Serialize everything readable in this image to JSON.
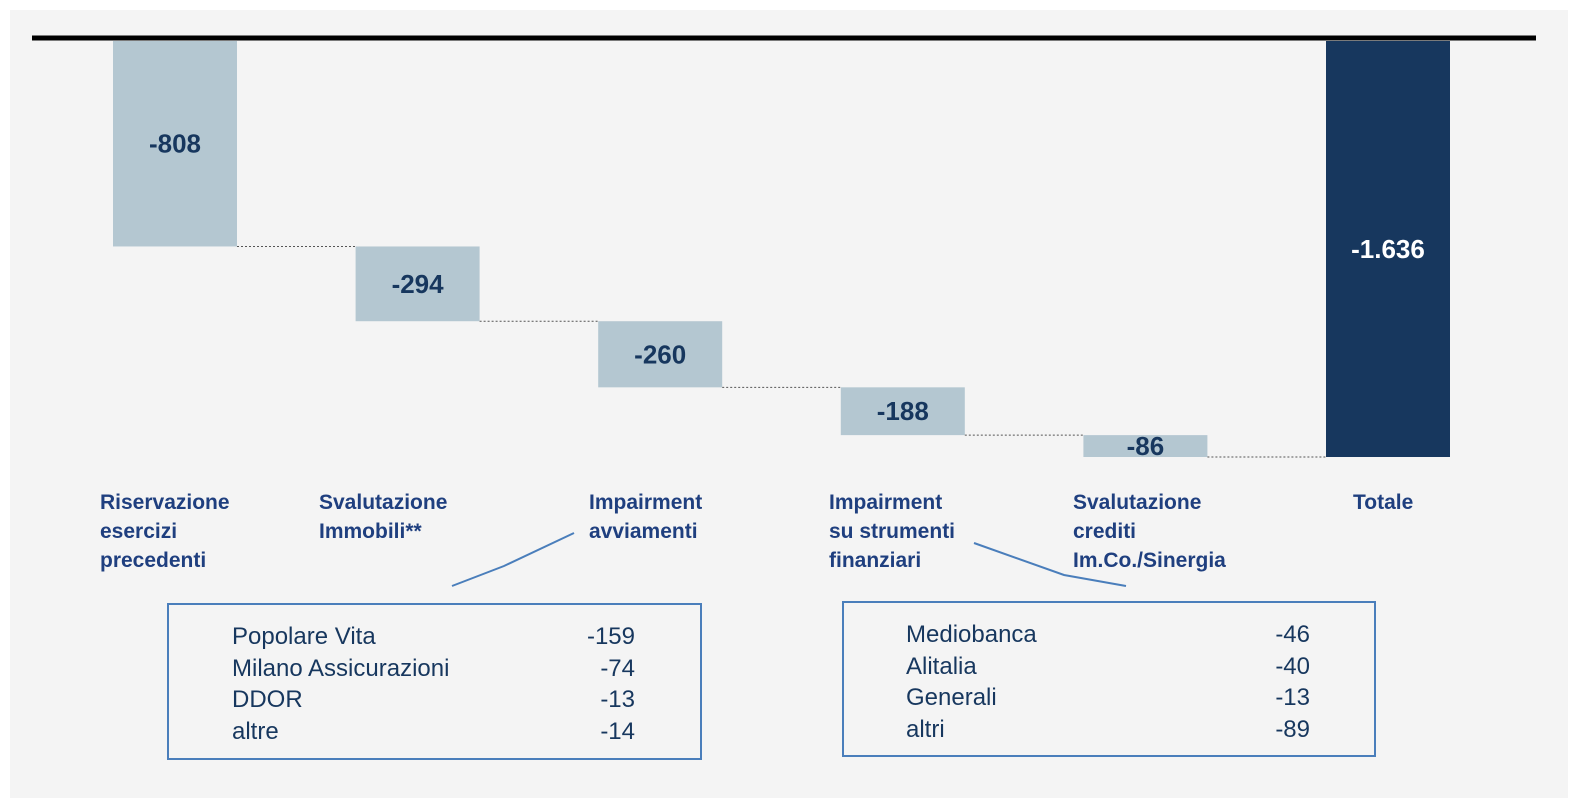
{
  "chart_data": {
    "type": "waterfall",
    "categories": [
      "Riservazione\nesercizi\nprecedenti",
      "Svalutazione\nImmobili**",
      "Impairment\navviamenti",
      "Impairment\nsu strumenti\nfinanziari",
      "Svalutazione\ncrediti\nIm.Co./Sinergia",
      "Totale"
    ],
    "values": [
      -808,
      -294,
      -260,
      -188,
      -86,
      -1636
    ],
    "value_labels": [
      "-808",
      "-294",
      "-260",
      "-188",
      "-86",
      "-1.636"
    ],
    "color": "#b4c7d1",
    "total_color": "#17375e"
  },
  "boxes": [
    {
      "rows": [
        {
          "name": "Popolare Vita",
          "value": -159
        },
        {
          "name": "Milano Assicurazioni",
          "value": -74
        },
        {
          "name": "DDOR",
          "value": -13
        },
        {
          "name": "altre",
          "value": -14
        }
      ]
    },
    {
      "rows": [
        {
          "name": "Mediobanca",
          "value": -46
        },
        {
          "name": "Alitalia",
          "value": -40
        },
        {
          "name": "Generali",
          "value": -13
        },
        {
          "name": "altri",
          "value": -89
        }
      ]
    }
  ]
}
